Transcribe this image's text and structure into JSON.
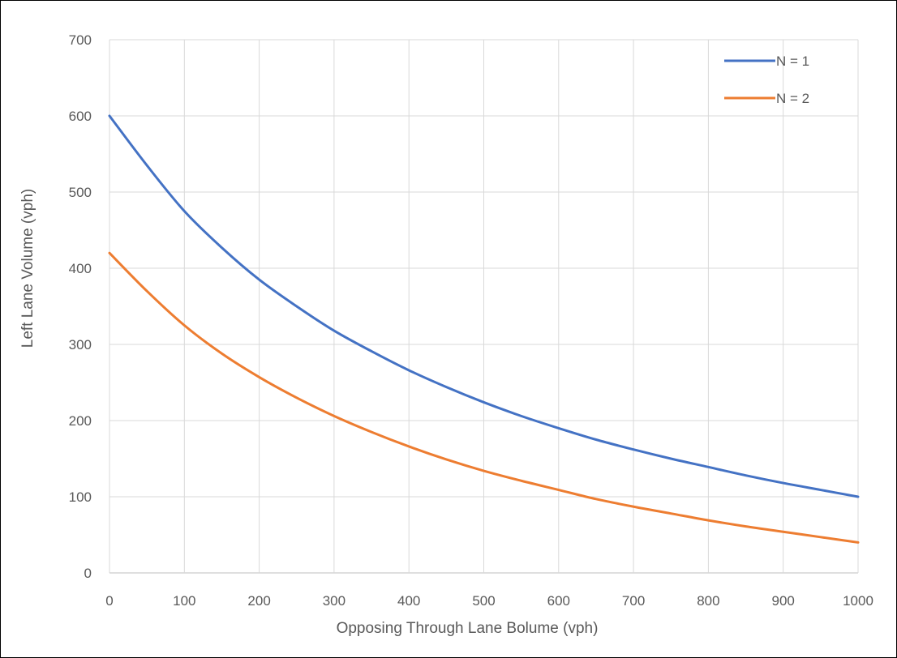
{
  "chart_data": {
    "type": "line",
    "title": "",
    "xlabel": "Opposing Through Lane Bolume (vph)",
    "ylabel": "Left Lane Volume (vph)",
    "xlim": [
      0,
      1000
    ],
    "ylim": [
      0,
      700
    ],
    "xticks": [
      0,
      100,
      200,
      300,
      400,
      500,
      600,
      700,
      800,
      900,
      1000
    ],
    "yticks": [
      0,
      100,
      200,
      300,
      400,
      500,
      600,
      700
    ],
    "grid": true,
    "legend_position": "top-right",
    "series": [
      {
        "name": "N = 1",
        "color": "#4472C4",
        "x": [
          0,
          50,
          100,
          150,
          200,
          250,
          300,
          350,
          400,
          450,
          500,
          550,
          600,
          650,
          700,
          750,
          800,
          850,
          900,
          950,
          1000
        ],
        "y": [
          600,
          535,
          475,
          427,
          385,
          350,
          318,
          291,
          266,
          244,
          224,
          206,
          190,
          175,
          162,
          150,
          139,
          128,
          118,
          109,
          100
        ]
      },
      {
        "name": "N = 2",
        "color": "#ED7D31",
        "x": [
          0,
          50,
          100,
          150,
          200,
          250,
          300,
          350,
          400,
          450,
          500,
          550,
          600,
          650,
          700,
          750,
          800,
          850,
          900,
          950,
          1000
        ],
        "y": [
          420,
          370,
          325,
          288,
          257,
          230,
          206,
          185,
          166,
          149,
          134,
          121,
          109,
          97,
          87,
          78,
          69,
          61,
          54,
          47,
          40
        ]
      }
    ]
  }
}
